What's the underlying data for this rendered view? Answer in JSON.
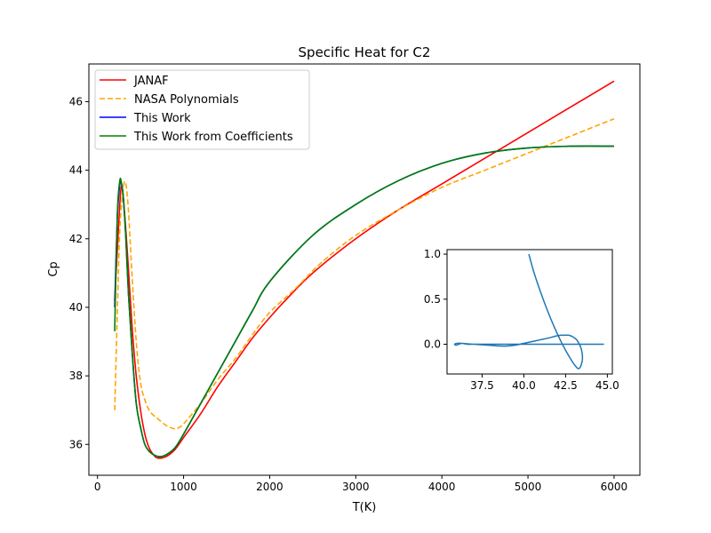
{
  "chart_data": [
    {
      "type": "line",
      "title": "Specific Heat for C2",
      "xlabel": "T(K)",
      "ylabel": "Cp",
      "xlim": [
        -100,
        6300
      ],
      "ylim": [
        35.1,
        47.1
      ],
      "xticks": [
        0,
        1000,
        2000,
        3000,
        4000,
        5000,
        6000
      ],
      "yticks": [
        36,
        38,
        40,
        42,
        44,
        46
      ],
      "grid": false,
      "legend": "top-left",
      "series": [
        {
          "name": "JANAF",
          "color": "#ff0000",
          "dash": "solid",
          "x": [
            200,
            250,
            275,
            300,
            350,
            400,
            450,
            500,
            550,
            600,
            650,
            700,
            800,
            900,
            1000,
            1200,
            1400,
            1600,
            1800,
            2000,
            2200,
            2500,
            3000,
            3500,
            4000,
            4500,
            5000,
            5500,
            6000
          ],
          "y": [
            40.2,
            42.6,
            43.5,
            43.2,
            41.5,
            39.5,
            38.0,
            37.0,
            36.3,
            35.9,
            35.7,
            35.6,
            35.65,
            35.85,
            36.2,
            36.9,
            37.7,
            38.4,
            39.1,
            39.7,
            40.25,
            41.0,
            42.0,
            42.85,
            43.6,
            44.35,
            45.1,
            45.85,
            46.6
          ]
        },
        {
          "name": "NASA Polynomials",
          "color": "#ffa500",
          "dash": "dashed",
          "x": [
            200,
            230,
            260,
            300,
            330,
            360,
            400,
            450,
            500,
            550,
            600,
            650,
            700,
            800,
            900,
            950,
            1000,
            1200,
            1400,
            1600,
            1800,
            2000,
            2300,
            2600,
            3000,
            3500,
            4000,
            4500,
            5000,
            5500,
            6000
          ],
          "y": [
            37.0,
            39.8,
            42.3,
            43.5,
            43.6,
            42.8,
            41.0,
            39.0,
            37.8,
            37.3,
            37.0,
            36.85,
            36.75,
            36.55,
            36.45,
            36.5,
            36.6,
            37.2,
            37.9,
            38.5,
            39.2,
            39.85,
            40.55,
            41.3,
            42.1,
            42.85,
            43.5,
            44.0,
            44.5,
            45.0,
            45.5
          ]
        },
        {
          "name": "This Work",
          "color": "#0000ff",
          "dash": "solid",
          "x": [
            200,
            230,
            260,
            280,
            300,
            330,
            360,
            400,
            450,
            500,
            550,
            600,
            650,
            700,
            750,
            800,
            900,
            1000,
            1200,
            1400,
            1600,
            1800,
            2000,
            2500,
            3000,
            3500,
            4000,
            4500,
            5000,
            5500,
            6000
          ],
          "y": [
            40.0,
            42.6,
            43.6,
            43.6,
            43.2,
            42.0,
            40.4,
            38.8,
            37.2,
            36.5,
            36.0,
            35.8,
            35.7,
            35.65,
            35.65,
            35.7,
            35.9,
            36.3,
            37.2,
            38.1,
            39.0,
            39.9,
            40.75,
            42.1,
            43.0,
            43.7,
            44.2,
            44.5,
            44.65,
            44.7,
            44.7
          ]
        },
        {
          "name": "This Work from Coefficients",
          "color": "#008000",
          "dash": "solid",
          "x": [
            200,
            230,
            260,
            280,
            300,
            330,
            360,
            400,
            450,
            500,
            550,
            600,
            650,
            700,
            750,
            800,
            900,
            1000,
            1200,
            1400,
            1600,
            1800,
            2000,
            2500,
            3000,
            3500,
            4000,
            4500,
            5000,
            5500,
            6000
          ],
          "y": [
            39.3,
            42.7,
            43.7,
            43.6,
            43.2,
            42.0,
            40.4,
            38.8,
            37.2,
            36.5,
            36.0,
            35.8,
            35.7,
            35.65,
            35.65,
            35.7,
            35.9,
            36.3,
            37.2,
            38.1,
            39.0,
            39.9,
            40.75,
            42.1,
            43.0,
            43.7,
            44.2,
            44.5,
            44.65,
            44.7,
            44.7
          ]
        }
      ]
    },
    {
      "type": "line",
      "title": "",
      "xlabel": "",
      "ylabel": "",
      "xlim": [
        35.4,
        45.3
      ],
      "ylim": [
        -0.33,
        1.05
      ],
      "xticks": [
        37.5,
        40.0,
        42.5,
        45.0
      ],
      "xtick_labels": [
        "37.5",
        "40.0",
        "42.5",
        "45.0"
      ],
      "yticks": [
        0.0,
        0.5,
        1.0
      ],
      "ytick_labels": [
        "0.0",
        "0.5",
        "1.0"
      ],
      "grid": false,
      "series": [
        {
          "color": "#1f77b4",
          "x": [
            40.3,
            40.6,
            41.0,
            41.4,
            41.8,
            42.2,
            42.6,
            43.0,
            43.3,
            43.5,
            43.45,
            43.2,
            42.95,
            42.7,
            42.45,
            42.2,
            41.9,
            41.5,
            41.0,
            40.5,
            40.0,
            39.5,
            39.0,
            38.6,
            38.2,
            37.8,
            37.4,
            37.0,
            36.6,
            36.3,
            36.0,
            35.85,
            35.95,
            36.1,
            36.3,
            36.6,
            37.0,
            37.5,
            38.0,
            38.5,
            39.0,
            39.5,
            40.0,
            41.0,
            42.0,
            43.0,
            44.0,
            44.8
          ],
          "y": [
            1.0,
            0.8,
            0.58,
            0.38,
            0.2,
            0.04,
            -0.1,
            -0.22,
            -0.27,
            -0.18,
            -0.06,
            0.04,
            0.08,
            0.1,
            0.1,
            0.1,
            0.09,
            0.07,
            0.05,
            0.03,
            0.01,
            -0.01,
            -0.02,
            -0.02,
            -0.015,
            -0.01,
            -0.005,
            0.0,
            0.005,
            0.01,
            0.01,
            0.0,
            -0.01,
            0.0,
            0.01,
            0.0,
            0.0,
            0.0,
            0.0,
            0.0,
            0.0,
            0.0,
            0.0,
            0.0,
            0.0,
            0.0,
            0.0,
            0.0
          ]
        }
      ]
    }
  ]
}
